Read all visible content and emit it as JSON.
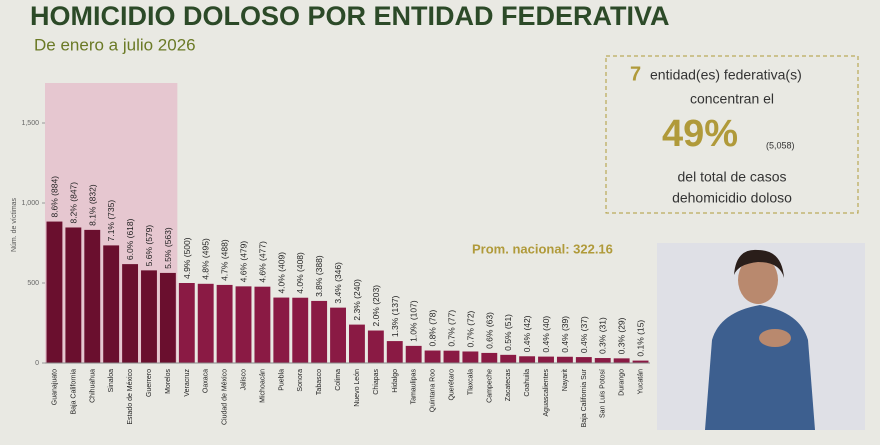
{
  "chart_data": {
    "type": "bar",
    "title": "HOMICIDIO DOLOSO POR ENTIDAD FEDERATIVA",
    "subtitle": "De enero a julio 2026",
    "y_label": "Núm. de víctimas",
    "categories": [
      "Guanajuato",
      "Baja California",
      "Chihuahua",
      "Sinaloa",
      "Estado de México",
      "Guerrero",
      "Morelos",
      "Veracruz",
      "Oaxaca",
      "Ciudad de México",
      "Jalisco",
      "Michoacán",
      "Puebla",
      "Sonora",
      "Tabasco",
      "Colima",
      "Nuevo León",
      "Chiapas",
      "Hidalgo",
      "Tamaulipas",
      "Quintana Roo",
      "Querétaro",
      "Tlaxcala",
      "Campeche",
      "Zacatecas",
      "Coahuila",
      "Aguascalientes",
      "Nayarit",
      "Baja California Sur",
      "San Luis Potosí",
      "Durango",
      "Yucatán"
    ],
    "values": [
      884,
      847,
      832,
      735,
      618,
      579,
      563,
      500,
      495,
      488,
      479,
      477,
      409,
      408,
      388,
      346,
      240,
      203,
      137,
      107,
      78,
      77,
      72,
      63,
      51,
      42,
      40,
      39,
      37,
      31,
      29,
      15
    ],
    "value_labels": [
      "8.6% (884)",
      "8.2% (847)",
      "8.1% (832)",
      "7.1% (735)",
      "6.0% (618)",
      "5.6% (579)",
      "5.5% (563)",
      "4.9% (500)",
      "4.8% (495)",
      "4.7% (488)",
      "4.6% (479)",
      "4.6% (477)",
      "4.0% (409)",
      "4.0% (408)",
      "3.8% (388)",
      "3.4% (346)",
      "2.3% (240)",
      "2.0% (203)",
      "1.3% (137)",
      "1.0% (107)",
      "0.8% (78)",
      "0.7% (77)",
      "0.7% (72)",
      "0.6% (63)",
      "0.5% (51)",
      "0.4% (42)",
      "0.4% (40)",
      "0.4% (39)",
      "0.4% (37)",
      "0.3% (31)",
      "0.3% (29)",
      "0.1% (15)"
    ],
    "color": "#8a1a44",
    "highlight_color": "#6a0f2e",
    "highlight_band": "#e6c7d0",
    "ylim": [
      0,
      1750
    ],
    "yticks": [
      0,
      500,
      {
        "value": 1000,
        "label": "1,000"
      },
      {
        "value": 1500,
        "label": "1,500"
      }
    ],
    "average_text": "Prom. nacional: 322.16",
    "callout": {
      "count": 7,
      "line1": "entidad(es) federativa(s)",
      "line2": "concentran el",
      "share": "49%",
      "total": "(5,058)",
      "line3": "del total de casos",
      "line4": "dehomicidio doloso"
    }
  }
}
